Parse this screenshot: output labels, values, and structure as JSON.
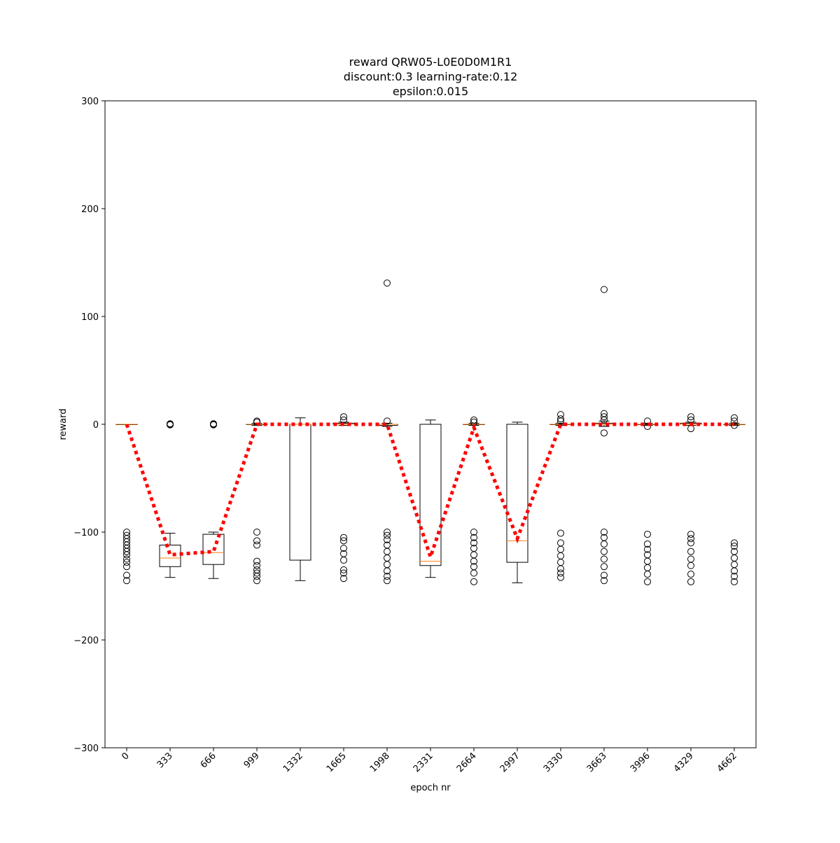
{
  "chart_data": {
    "type": "box",
    "title": [
      "reward QRW05-L0E0D0M1R1",
      "discount:0.3 learning-rate:0.12",
      "epsilon:0.015"
    ],
    "x_label": "epoch nr",
    "y_label": "reward",
    "categories": [
      "0",
      "333",
      "666",
      "999",
      "1332",
      "1665",
      "1998",
      "2331",
      "2664",
      "2997",
      "3330",
      "3663",
      "3996",
      "4329",
      "4662"
    ],
    "ylim": [
      -300,
      300
    ],
    "yticks": [
      {
        "value": -300,
        "label": "−300"
      },
      {
        "value": -200,
        "label": "−200"
      },
      {
        "value": -100,
        "label": "−100"
      },
      0,
      100,
      200,
      300
    ],
    "box_color": "#000000",
    "median_color": "#ff7f0e",
    "line_color": "#ff0000",
    "boxes": [
      {
        "whislo": 0,
        "q1": 0,
        "median": 0,
        "q3": 0,
        "whishi": 0,
        "outliers": [
          -100,
          -103,
          -106,
          -109,
          -112,
          -115,
          -118,
          -121,
          -125,
          -128,
          -132,
          -140,
          -145
        ]
      },
      {
        "whislo": -142,
        "q1": -132,
        "median": -124,
        "q3": -112,
        "whishi": -101,
        "outliers": [
          0,
          0.5,
          -0.5
        ]
      },
      {
        "whislo": -143,
        "q1": -130,
        "median": -119,
        "q3": -102,
        "whishi": -100,
        "outliers": [
          0,
          0.5,
          -0.5
        ]
      },
      {
        "whislo": -1,
        "q1": 0,
        "median": 0,
        "q3": 0,
        "whishi": 1,
        "outliers": [
          3,
          2,
          -100,
          -108,
          -112,
          -127,
          -131,
          -135,
          -138,
          -141,
          -145
        ]
      },
      {
        "whislo": -145,
        "q1": -126,
        "median": 0,
        "q3": 0,
        "whishi": 6,
        "outliers": []
      },
      {
        "whislo": -1,
        "q1": 0,
        "median": 0,
        "q3": 1,
        "whishi": 2,
        "outliers": [
          7,
          4,
          -105,
          -108,
          -115,
          -120,
          -126,
          -135,
          -138,
          -143
        ]
      },
      {
        "whislo": -2,
        "q1": -1,
        "median": 0,
        "q3": 0,
        "whishi": 1,
        "outliers": [
          131,
          3,
          -100,
          -103,
          -107,
          -112,
          -118,
          -124,
          -130,
          -136,
          -141,
          -145
        ]
      },
      {
        "whislo": -142,
        "q1": -131,
        "median": -127,
        "q3": 0,
        "whishi": 4,
        "outliers": []
      },
      {
        "whislo": -1,
        "q1": 0,
        "median": 0,
        "q3": 0,
        "whishi": 1,
        "outliers": [
          4,
          2,
          -100,
          -105,
          -110,
          -115,
          -121,
          -127,
          -132,
          -138,
          -146
        ]
      },
      {
        "whislo": -147,
        "q1": -128,
        "median": -108,
        "q3": 0,
        "whishi": 2,
        "outliers": []
      },
      {
        "whislo": -1,
        "q1": 0,
        "median": 0,
        "q3": 0,
        "whishi": 1,
        "outliers": [
          9,
          5,
          3,
          -101,
          -110,
          -116,
          -122,
          -128,
          -134,
          -138,
          -142
        ]
      },
      {
        "whislo": -2,
        "q1": 0,
        "median": 0,
        "q3": 1,
        "whishi": 3,
        "outliers": [
          125,
          10,
          7,
          4,
          -8,
          -100,
          -105,
          -111,
          -118,
          -125,
          -132,
          -140,
          -145
        ]
      },
      {
        "whislo": -1,
        "q1": 0,
        "median": 0,
        "q3": 0,
        "whishi": 1,
        "outliers": [
          3,
          -2,
          -102,
          -111,
          -116,
          -121,
          -127,
          -133,
          -139,
          -146
        ]
      },
      {
        "whislo": -1,
        "q1": 0,
        "median": 0,
        "q3": 1,
        "whishi": 2,
        "outliers": [
          7,
          4,
          -4,
          -102,
          -106,
          -110,
          -118,
          -125,
          -131,
          -139,
          -146
        ]
      },
      {
        "whislo": -1,
        "q1": 0,
        "median": 0,
        "q3": 0,
        "whishi": 1,
        "outliers": [
          6,
          3,
          -1,
          -110,
          -113,
          -118,
          -124,
          -130,
          -136,
          -141,
          -146
        ]
      }
    ],
    "line_values": [
      0,
      -121,
      -118,
      0,
      0,
      0,
      0,
      -123,
      -3,
      -106,
      0,
      0,
      0,
      0,
      0
    ]
  }
}
